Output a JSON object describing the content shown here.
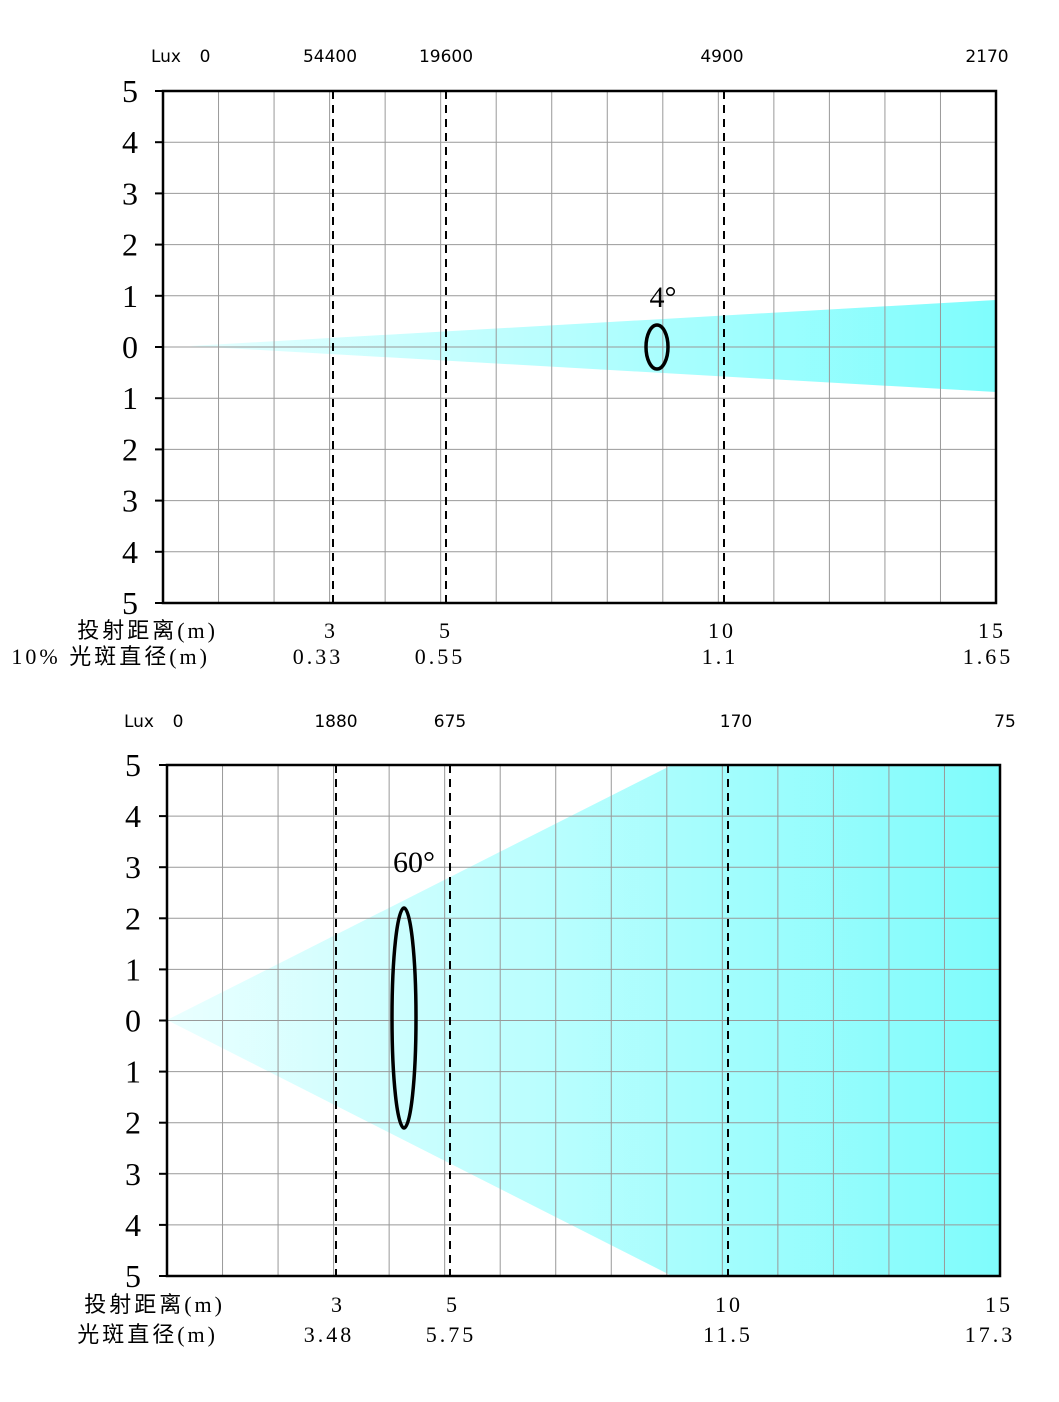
{
  "panels": [
    {
      "lux_label": "Lux",
      "lux": [
        "0",
        "54400",
        "19600",
        "4900",
        "2170"
      ],
      "y_labels": [
        "5",
        "4",
        "3",
        "2",
        "1",
        "0",
        "1",
        "2",
        "3",
        "4",
        "5"
      ],
      "angle": "4°",
      "rows": [
        {
          "label": "投射距离(m)",
          "values": [
            "3",
            "5",
            "10",
            "15"
          ]
        },
        {
          "label": "10% 光斑直径(m)",
          "values": [
            "0.33",
            "0.55",
            "1.1",
            "1.65"
          ]
        }
      ]
    },
    {
      "lux_label": "Lux",
      "lux": [
        "0",
        "1880",
        "675",
        "170",
        "75"
      ],
      "y_labels": [
        "5",
        "4",
        "3",
        "2",
        "1",
        "0",
        "1",
        "2",
        "3",
        "4",
        "5"
      ],
      "angle": "60°",
      "rows": [
        {
          "label": "投射距离(m)",
          "values": [
            "3",
            "5",
            "10",
            "15"
          ]
        },
        {
          "label": "光斑直径(m)",
          "values": [
            "3.48",
            "5.75",
            "11.5",
            "17.3"
          ]
        }
      ]
    }
  ]
}
